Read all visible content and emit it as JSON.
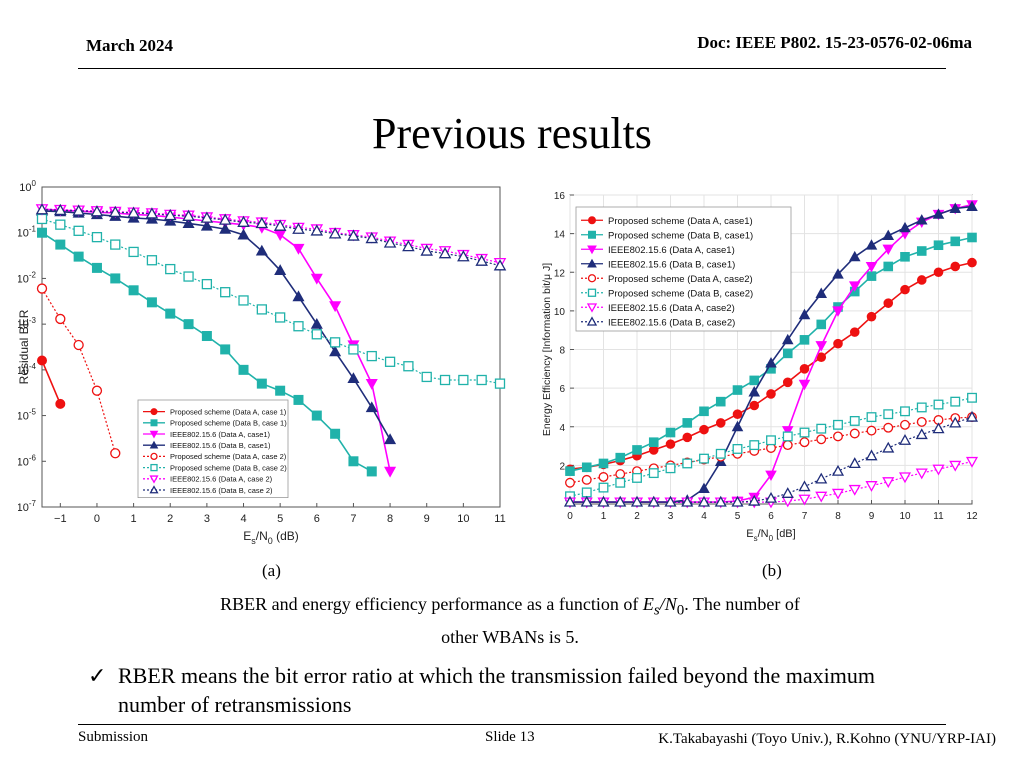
{
  "header": {
    "date": "March 2024",
    "doc": "Doc: IEEE P802. 15-23-0576-02-06ma"
  },
  "title": "Previous results",
  "panels": {
    "a_label": "(a)",
    "b_label": "(b)"
  },
  "caption": {
    "line1_prefix": "RBER and energy efficiency performance as a function of ",
    "es": "E",
    "es_sub": "s",
    "slash": "/",
    "n0": "N",
    "n0_sub": "0",
    "line1_suffix": ". The number of",
    "line2": "other WBANs is 5."
  },
  "bullet": {
    "check": "✓",
    "text": "RBER means the bit error ratio at which the transmission failed beyond the maximum number of retransmissions"
  },
  "footer": {
    "left": "Submission",
    "mid": "Slide 13",
    "right": "K.Takabayashi (Toyo Univ.), R.Kohno (YNU/YRP-IAI)"
  },
  "chart_data": [
    {
      "type": "line",
      "panel": "(a)",
      "xlabel": "Es/N0 (dB)",
      "xlabel_main": "E",
      "xlabel_sub1": "s",
      "xlabel_mid": "/N",
      "xlabel_sub2": "0",
      "xlabel_tail": " (dB)",
      "ylabel": "Residual BER",
      "y_scale": "log",
      "xlim": [
        -1.5,
        11
      ],
      "ylim": [
        1e-07,
        1
      ],
      "x_ticks": [
        -1,
        0,
        1,
        2,
        3,
        4,
        5,
        6,
        7,
        8,
        9,
        10,
        11
      ],
      "y_ticks": [
        {
          "base": "10",
          "exp": "0",
          "value": 1
        },
        {
          "base": "10",
          "exp": "-1",
          "value": 0.1
        },
        {
          "base": "10",
          "exp": "-2",
          "value": 0.01
        },
        {
          "base": "10",
          "exp": "-3",
          "value": 0.001
        },
        {
          "base": "10",
          "exp": "-4",
          "value": 0.0001
        },
        {
          "base": "10",
          "exp": "-5",
          "value": 1e-05
        },
        {
          "base": "10",
          "exp": "-6",
          "value": 1e-06
        },
        {
          "base": "10",
          "exp": "-7",
          "value": 1e-07
        }
      ],
      "legend_position": "bottom-center",
      "series": [
        {
          "name": "Proposed scheme (Data A, case 1)",
          "color": "#ee1111",
          "marker": "circle",
          "filled": true,
          "dashed": false,
          "x": [
            -1.5,
            -1
          ],
          "y": [
            0.00016,
            1.8e-05
          ]
        },
        {
          "name": "Proposed scheme (Data B, case 1)",
          "color": "#20b2aa",
          "marker": "square",
          "filled": true,
          "dashed": false,
          "x": [
            -1.5,
            -1,
            -0.5,
            0,
            0.5,
            1,
            1.5,
            2,
            2.5,
            3,
            3.5,
            4,
            4.5,
            5,
            5.5,
            6,
            6.5,
            7,
            7.5
          ],
          "y": [
            0.1,
            0.055,
            0.03,
            0.017,
            0.01,
            0.0055,
            0.003,
            0.0017,
            0.001,
            0.00055,
            0.00028,
            0.0001,
            5e-05,
            3.5e-05,
            2.2e-05,
            1e-05,
            4e-06,
            1e-06,
            6e-07
          ]
        },
        {
          "name": "IEEE802.15.6 (Data A, case1)",
          "color": "#ff00ff",
          "marker": "triangle-down",
          "filled": true,
          "dashed": false,
          "x": [
            -1.5,
            -1,
            -0.5,
            0,
            0.5,
            1,
            1.5,
            2,
            2.5,
            3,
            3.5,
            4,
            4.5,
            5,
            5.5,
            6,
            6.5,
            7,
            7.5,
            8
          ],
          "y": [
            0.33,
            0.31,
            0.3,
            0.28,
            0.27,
            0.25,
            0.24,
            0.22,
            0.2,
            0.18,
            0.165,
            0.15,
            0.13,
            0.09,
            0.045,
            0.01,
            0.0025,
            0.00035,
            5e-05,
            6e-07
          ]
        },
        {
          "name": "IEEE802.15.6 (Data B, case1)",
          "color": "#1f2d7a",
          "marker": "triangle-up",
          "filled": true,
          "dashed": false,
          "x": [
            -1.5,
            -1,
            -0.5,
            0,
            0.5,
            1,
            1.5,
            2,
            2.5,
            3,
            3.5,
            4,
            4.5,
            5,
            5.5,
            6,
            6.5,
            7,
            7.5,
            8
          ],
          "y": [
            0.3,
            0.29,
            0.27,
            0.25,
            0.23,
            0.21,
            0.2,
            0.18,
            0.16,
            0.14,
            0.12,
            0.09,
            0.04,
            0.015,
            0.004,
            0.001,
            0.00025,
            6.5e-05,
            1.5e-05,
            3e-06
          ]
        },
        {
          "name": "Proposed scheme (Data A, case 2)",
          "color": "#ee1111",
          "marker": "circle",
          "filled": false,
          "dashed": true,
          "x": [
            -1.5,
            -1,
            -0.5,
            0,
            0.5
          ],
          "y": [
            0.006,
            0.0013,
            0.00035,
            3.5e-05,
            1.5e-06
          ]
        },
        {
          "name": "Proposed scheme (Data B, case 2)",
          "color": "#20b2aa",
          "marker": "square",
          "filled": false,
          "dashed": true,
          "x": [
            -1.5,
            -1,
            -0.5,
            0,
            0.5,
            1,
            1.5,
            2,
            2.5,
            3,
            3.5,
            4,
            4.5,
            5,
            5.5,
            6,
            6.5,
            7,
            7.5,
            8,
            8.5,
            9,
            9.5,
            10,
            10.5,
            11
          ],
          "y": [
            0.2,
            0.15,
            0.11,
            0.08,
            0.055,
            0.038,
            0.025,
            0.016,
            0.011,
            0.0075,
            0.005,
            0.0033,
            0.0021,
            0.0014,
            0.0009,
            0.0006,
            0.0004,
            0.00028,
            0.0002,
            0.00015,
            0.00012,
            7e-05,
            6e-05,
            6e-05,
            6e-05,
            5e-05
          ]
        },
        {
          "name": "IEEE802.15.6 (Data A, case 2)",
          "color": "#ff00ff",
          "marker": "triangle-down",
          "filled": false,
          "dashed": true,
          "x": [
            -1.5,
            -1,
            -0.5,
            0,
            0.5,
            1,
            1.5,
            2,
            2.5,
            3,
            3.5,
            4,
            4.5,
            5,
            5.5,
            6,
            6.5,
            7,
            7.5,
            8,
            8.5,
            9,
            9.5,
            10,
            10.5,
            11
          ],
          "y": [
            0.33,
            0.32,
            0.31,
            0.3,
            0.29,
            0.28,
            0.27,
            0.25,
            0.24,
            0.22,
            0.2,
            0.18,
            0.17,
            0.15,
            0.13,
            0.12,
            0.1,
            0.09,
            0.08,
            0.065,
            0.055,
            0.045,
            0.04,
            0.033,
            0.027,
            0.022
          ]
        },
        {
          "name": "IEEE802.15.6 (Data B, case 2)",
          "color": "#1f2d7a",
          "marker": "triangle-up",
          "filled": false,
          "dashed": true,
          "x": [
            -1.5,
            -1,
            -0.5,
            0,
            0.5,
            1,
            1.5,
            2,
            2.5,
            3,
            3.5,
            4,
            4.5,
            5,
            5.5,
            6,
            6.5,
            7,
            7.5,
            8,
            8.5,
            9,
            9.5,
            10,
            10.5,
            11
          ],
          "y": [
            0.32,
            0.31,
            0.3,
            0.29,
            0.28,
            0.27,
            0.26,
            0.24,
            0.23,
            0.21,
            0.19,
            0.17,
            0.16,
            0.14,
            0.12,
            0.11,
            0.095,
            0.085,
            0.075,
            0.06,
            0.05,
            0.04,
            0.035,
            0.03,
            0.024,
            0.019
          ]
        }
      ]
    },
    {
      "type": "line",
      "panel": "(b)",
      "xlabel": "Es/N0 [dB]",
      "xlabel_main": "E",
      "xlabel_sub1": "s",
      "xlabel_mid": "/N",
      "xlabel_sub2": "0",
      "xlabel_tail": " [dB]",
      "ylabel": "Energy Efficiency [Information bit/μ J]",
      "y_scale": "linear",
      "xlim": [
        0,
        12
      ],
      "ylim": [
        0,
        16
      ],
      "x_ticks": [
        0,
        1,
        2,
        3,
        4,
        5,
        6,
        7,
        8,
        9,
        10,
        11,
        12
      ],
      "y_ticks": [
        2,
        4,
        6,
        8,
        10,
        12,
        14,
        16
      ],
      "legend_position": "top-left",
      "series": [
        {
          "name": "Proposed scheme (Data A, case1)",
          "color": "#ee1111",
          "marker": "circle",
          "filled": true,
          "dashed": false,
          "x": [
            0,
            0.5,
            1,
            1.5,
            2,
            2.5,
            3,
            3.5,
            4,
            4.5,
            5,
            5.5,
            6,
            6.5,
            7,
            7.5,
            8,
            8.5,
            9,
            9.5,
            10,
            10.5,
            11,
            11.5,
            12
          ],
          "y": [
            1.8,
            1.9,
            2.05,
            2.25,
            2.5,
            2.8,
            3.1,
            3.45,
            3.85,
            4.2,
            4.65,
            5.1,
            5.7,
            6.3,
            7.0,
            7.6,
            8.3,
            8.9,
            9.7,
            10.4,
            11.1,
            11.6,
            12.0,
            12.3,
            12.5
          ]
        },
        {
          "name": "Proposed scheme (Data B, case1)",
          "color": "#20b2aa",
          "marker": "square",
          "filled": true,
          "dashed": false,
          "x": [
            0,
            0.5,
            1,
            1.5,
            2,
            2.5,
            3,
            3.5,
            4,
            4.5,
            5,
            5.5,
            6,
            6.5,
            7,
            7.5,
            8,
            8.5,
            9,
            9.5,
            10,
            10.5,
            11,
            11.5,
            12
          ],
          "y": [
            1.7,
            1.9,
            2.1,
            2.4,
            2.8,
            3.2,
            3.7,
            4.2,
            4.8,
            5.3,
            5.9,
            6.4,
            7.0,
            7.8,
            8.5,
            9.3,
            10.2,
            11.0,
            11.8,
            12.3,
            12.8,
            13.1,
            13.4,
            13.6,
            13.8
          ]
        },
        {
          "name": "IEEE802.15.6 (Data A, case1)",
          "color": "#ff00ff",
          "marker": "triangle-down",
          "filled": true,
          "dashed": false,
          "x": [
            0,
            0.5,
            1,
            1.5,
            2,
            2.5,
            3,
            3.5,
            4,
            4.5,
            5,
            5.5,
            6,
            6.5,
            7,
            7.5,
            8,
            8.5,
            9,
            9.5,
            10,
            10.5,
            11,
            11.5,
            12
          ],
          "y": [
            0.1,
            0.1,
            0.1,
            0.1,
            0.1,
            0.1,
            0.1,
            0.1,
            0.1,
            0.1,
            0.15,
            0.35,
            1.5,
            3.8,
            6.2,
            8.2,
            10.0,
            11.3,
            12.3,
            13.2,
            14.0,
            14.6,
            15.0,
            15.3,
            15.5
          ]
        },
        {
          "name": "IEEE802.15.6 (Data B, case1)",
          "color": "#1f2d7a",
          "marker": "triangle-up",
          "filled": true,
          "dashed": false,
          "x": [
            0,
            0.5,
            1,
            1.5,
            2,
            2.5,
            3,
            3.5,
            4,
            4.5,
            5,
            5.5,
            6,
            6.5,
            7,
            7.5,
            8,
            8.5,
            9,
            9.5,
            10,
            10.5,
            11,
            11.5,
            12
          ],
          "y": [
            0.1,
            0.1,
            0.1,
            0.1,
            0.1,
            0.1,
            0.1,
            0.2,
            0.8,
            2.2,
            4.0,
            5.8,
            7.3,
            8.5,
            9.8,
            10.9,
            11.9,
            12.8,
            13.4,
            13.9,
            14.3,
            14.7,
            15.0,
            15.3,
            15.4
          ]
        },
        {
          "name": "Proposed scheme (Data A, case2)",
          "color": "#ee1111",
          "marker": "circle",
          "filled": false,
          "dashed": true,
          "x": [
            0,
            0.5,
            1,
            1.5,
            2,
            2.5,
            3,
            3.5,
            4,
            4.5,
            5,
            5.5,
            6,
            6.5,
            7,
            7.5,
            8,
            8.5,
            9,
            9.5,
            10,
            10.5,
            11,
            11.5,
            12
          ],
          "y": [
            1.1,
            1.25,
            1.4,
            1.55,
            1.7,
            1.85,
            2.0,
            2.15,
            2.3,
            2.45,
            2.6,
            2.75,
            2.9,
            3.05,
            3.2,
            3.35,
            3.5,
            3.65,
            3.8,
            3.95,
            4.1,
            4.25,
            4.35,
            4.45,
            4.5
          ]
        },
        {
          "name": "Proposed scheme (Data B, case2)",
          "color": "#20b2aa",
          "marker": "square",
          "filled": false,
          "dashed": true,
          "x": [
            0,
            0.5,
            1,
            1.5,
            2,
            2.5,
            3,
            3.5,
            4,
            4.5,
            5,
            5.5,
            6,
            6.5,
            7,
            7.5,
            8,
            8.5,
            9,
            9.5,
            10,
            10.5,
            11,
            11.5,
            12
          ],
          "y": [
            0.4,
            0.6,
            0.85,
            1.1,
            1.35,
            1.6,
            1.85,
            2.1,
            2.35,
            2.6,
            2.85,
            3.05,
            3.3,
            3.5,
            3.7,
            3.9,
            4.1,
            4.3,
            4.5,
            4.65,
            4.8,
            5.0,
            5.15,
            5.3,
            5.5
          ]
        },
        {
          "name": "IEEE802.15.6 (Data A, case2)",
          "color": "#ff00ff",
          "marker": "triangle-down",
          "filled": false,
          "dashed": true,
          "x": [
            0,
            0.5,
            1,
            1.5,
            2,
            2.5,
            3,
            3.5,
            4,
            4.5,
            5,
            5.5,
            6,
            6.5,
            7,
            7.5,
            8,
            8.5,
            9,
            9.5,
            10,
            10.5,
            11,
            11.5,
            12
          ],
          "y": [
            0.1,
            0.1,
            0.1,
            0.1,
            0.1,
            0.1,
            0.1,
            0.1,
            0.1,
            0.1,
            0.1,
            0.1,
            0.1,
            0.15,
            0.25,
            0.4,
            0.55,
            0.75,
            0.95,
            1.15,
            1.4,
            1.6,
            1.8,
            2.0,
            2.2
          ]
        },
        {
          "name": "IEEE802.15.6 (Data B, case2)",
          "color": "#1f2d7a",
          "marker": "triangle-up",
          "filled": false,
          "dashed": true,
          "x": [
            0,
            0.5,
            1,
            1.5,
            2,
            2.5,
            3,
            3.5,
            4,
            4.5,
            5,
            5.5,
            6,
            6.5,
            7,
            7.5,
            8,
            8.5,
            9,
            9.5,
            10,
            10.5,
            11,
            11.5,
            12
          ],
          "y": [
            0.1,
            0.1,
            0.1,
            0.1,
            0.1,
            0.1,
            0.1,
            0.1,
            0.1,
            0.1,
            0.1,
            0.15,
            0.3,
            0.55,
            0.9,
            1.3,
            1.7,
            2.1,
            2.5,
            2.9,
            3.3,
            3.6,
            3.9,
            4.2,
            4.5
          ]
        }
      ]
    }
  ]
}
